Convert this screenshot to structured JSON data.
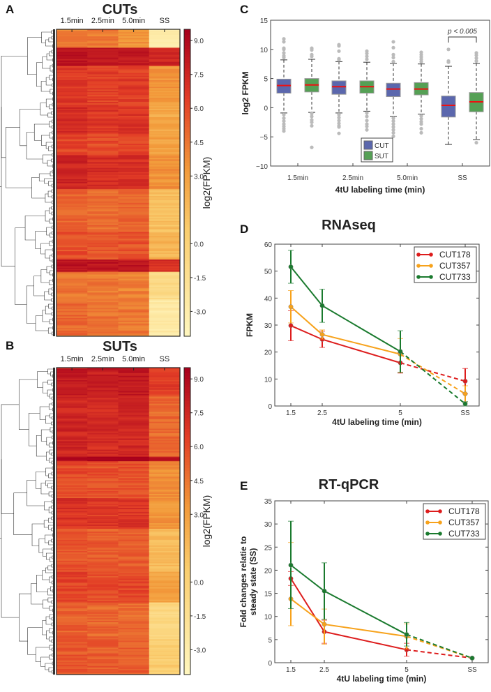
{
  "panels": {
    "A": {
      "letter": "A",
      "title": "CUTs"
    },
    "B": {
      "letter": "B",
      "title": "SUTs"
    },
    "C": {
      "letter": "C"
    },
    "D": {
      "letter": "D",
      "title": "RNAseq"
    },
    "E": {
      "letter": "E",
      "title": "RT-qPCR"
    }
  },
  "colors": {
    "cut_box": "#5b67ad",
    "sut_box": "#55a055",
    "median": "#ee1111",
    "outlier": "#bbbbbb",
    "CUT178": "#dd1c1c",
    "CUT357": "#f7a21b",
    "CUT733": "#1a7a2e",
    "heat_low": "#fff7c0",
    "heat_mid": "#f29a3a",
    "heat_high": "#a8001c"
  },
  "chart_data": [
    {
      "id": "A",
      "type": "heatmap",
      "title": "CUTs",
      "columns": [
        "1.5min",
        "2.5min",
        "5.0min",
        "SS"
      ],
      "colorbar_label": "log2(FPKM)",
      "colorbar_ticks": [
        "9.0",
        "7.5",
        "6.0",
        "4.5",
        "3.0",
        "0.0",
        "-1.5",
        "-3.0"
      ],
      "colorbar_range": [
        -4.1,
        9.5
      ],
      "row_blocks": [
        {
          "share": 6,
          "values": [
            4.2,
            4.4,
            3.6,
            -2.8
          ]
        },
        {
          "share": 6,
          "values": [
            8.4,
            8.2,
            8.3,
            7.6
          ]
        },
        {
          "share": 13,
          "values": [
            6.7,
            6.4,
            6.5,
            3.4
          ]
        },
        {
          "share": 9,
          "values": [
            7.2,
            6.8,
            6.9,
            2.6
          ]
        },
        {
          "share": 7,
          "values": [
            6.2,
            6.1,
            6.2,
            3.0
          ]
        },
        {
          "share": 11,
          "values": [
            7.6,
            7.3,
            7.2,
            3.6
          ]
        },
        {
          "share": 14,
          "values": [
            5.2,
            4.9,
            5.0,
            1.4
          ]
        },
        {
          "share": 9,
          "values": [
            5.9,
            5.6,
            5.7,
            2.0
          ]
        },
        {
          "share": 4,
          "values": [
            8.6,
            8.4,
            8.3,
            7.2
          ]
        },
        {
          "share": 9,
          "values": [
            4.6,
            4.4,
            4.2,
            -0.8
          ]
        },
        {
          "share": 12,
          "values": [
            5.0,
            4.7,
            4.6,
            -2.5
          ]
        }
      ]
    },
    {
      "id": "B",
      "type": "heatmap",
      "title": "SUTs",
      "columns": [
        "1.5min",
        "2.5min",
        "5.0min",
        "SS"
      ],
      "colorbar_label": "log2(FPKM)",
      "colorbar_ticks": [
        "9.0",
        "7.5",
        "6.0",
        "4.5",
        "3.0",
        "0.0",
        "-1.5",
        "-3.0"
      ],
      "colorbar_range": [
        -4.1,
        9.5
      ],
      "row_blocks": [
        {
          "share": 9,
          "values": [
            8.2,
            8.0,
            8.1,
            6.6
          ]
        },
        {
          "share": 20,
          "values": [
            7.6,
            7.3,
            7.5,
            5.0
          ]
        },
        {
          "share": 1.5,
          "values": [
            9.3,
            9.2,
            9.2,
            8.8
          ]
        },
        {
          "share": 12,
          "values": [
            6.0,
            5.8,
            5.9,
            3.8
          ]
        },
        {
          "share": 10,
          "values": [
            7.0,
            6.7,
            6.8,
            3.5
          ]
        },
        {
          "share": 14,
          "values": [
            5.6,
            5.4,
            5.4,
            1.5
          ]
        },
        {
          "share": 10,
          "values": [
            6.3,
            6.0,
            6.1,
            3.0
          ]
        },
        {
          "share": 12,
          "values": [
            5.3,
            5.1,
            5.0,
            -0.5
          ]
        },
        {
          "share": 11.5,
          "values": [
            5.6,
            5.4,
            5.3,
            0.5
          ]
        }
      ]
    },
    {
      "id": "C",
      "type": "box",
      "ylabel": "log2 FPKM",
      "xlabel": "4tU labeling time (min)",
      "categories": [
        "1.5min",
        "2.5min",
        "5.0min",
        "SS"
      ],
      "ylim": [
        -10,
        15
      ],
      "yticks": [
        "15",
        "10",
        "5",
        "0",
        "−5",
        "−10"
      ],
      "ytick_values": [
        15,
        10,
        5,
        0,
        -5,
        -10
      ],
      "legend": [
        "CUT",
        "SUT"
      ],
      "annotation": "p < 0.005",
      "series": [
        {
          "name": "CUT",
          "boxes": [
            {
              "q1": 2.5,
              "median": 3.8,
              "q3": 4.9,
              "low": -0.9,
              "high": 8.2,
              "outliers": [
                8.6,
                8.9,
                9.4,
                10.0,
                10.2,
                11.3,
                11.8,
                -1.2,
                -1.8,
                -2.3,
                -2.8,
                -3.2,
                -3.6,
                -4.0
              ]
            },
            {
              "q1": 2.3,
              "median": 3.6,
              "q3": 4.6,
              "low": -0.9,
              "high": 7.9,
              "outliers": [
                8.2,
                8.4,
                9.7,
                10.6,
                10.8,
                -1.2,
                -1.7,
                -2.2,
                -2.7,
                -3.1,
                -3.3,
                -4.4
              ]
            },
            {
              "q1": 1.9,
              "median": 3.2,
              "q3": 4.2,
              "low": -1.5,
              "high": 7.6,
              "outliers": [
                7.9,
                8.6,
                9.1,
                10.3,
                11.3,
                -1.8,
                -2.3,
                -2.8,
                -3.3,
                -3.8,
                -4.3,
                -4.9
              ]
            },
            {
              "q1": -1.6,
              "median": 0.4,
              "q3": 2.0,
              "low": -6.3,
              "high": 7.1,
              "outliers": [
                7.8,
                8.0,
                10.0
              ]
            }
          ]
        },
        {
          "name": "SUT",
          "boxes": [
            {
              "q1": 2.7,
              "median": 3.9,
              "q3": 5.0,
              "low": -0.8,
              "high": 8.3,
              "outliers": [
                8.8,
                9.1,
                9.9,
                10.2,
                -1.0,
                -1.5,
                -2.1,
                -2.5,
                -3.1,
                -6.8
              ]
            },
            {
              "q1": 2.5,
              "median": 3.6,
              "q3": 4.6,
              "low": -0.6,
              "high": 7.8,
              "outliers": [
                8.3,
                8.8,
                9.3,
                9.7,
                -0.9,
                -1.5,
                -2.2,
                -2.8,
                -3.2,
                -3.8
              ]
            },
            {
              "q1": 2.2,
              "median": 3.2,
              "q3": 4.3,
              "low": -1.1,
              "high": 7.5,
              "outliers": [
                7.9,
                8.3,
                8.7,
                9.1,
                9.5,
                -1.4,
                -1.9,
                -2.4,
                -2.8,
                -3.6,
                -4.3
              ]
            },
            {
              "q1": -0.7,
              "median": 1.0,
              "q3": 2.6,
              "low": -5.5,
              "high": 7.6,
              "outliers": [
                8.0,
                8.5,
                9.0,
                9.4,
                -6.0
              ]
            }
          ]
        }
      ]
    },
    {
      "id": "D",
      "type": "line",
      "title": "RNAseq",
      "ylabel": "FPKM",
      "xlabel": "4tU labeling time (min)",
      "x": [
        1.5,
        2.5,
        5,
        "SS"
      ],
      "xticks": [
        "1.5",
        "2.5",
        "5",
        "SS"
      ],
      "ylim": [
        0,
        60
      ],
      "yticks": [
        "60",
        "50",
        "40",
        "30",
        "20",
        "10",
        "0"
      ],
      "ytick_values": [
        60,
        50,
        40,
        30,
        20,
        10,
        0
      ],
      "legend_position": "top-right",
      "series": [
        {
          "name": "CUT178",
          "values": [
            29.8,
            24.7,
            16.0,
            9.2
          ],
          "err_low": [
            24.2,
            21.7,
            12.2,
            4.5
          ],
          "err_high": [
            35.3,
            27.7,
            19.8,
            13.9
          ]
        },
        {
          "name": "CUT357",
          "values": [
            36.8,
            26.5,
            19.2,
            4.5
          ],
          "err_low": [
            30.8,
            24.8,
            12.5,
            1.5
          ],
          "err_high": [
            42.8,
            28.2,
            25.0,
            7.5
          ]
        },
        {
          "name": "CUT733",
          "values": [
            51.6,
            37.2,
            20.2,
            0.8
          ],
          "err_low": [
            45.5,
            31.0,
            12.5,
            0.0
          ],
          "err_high": [
            57.7,
            43.3,
            27.9,
            1.6
          ]
        }
      ]
    },
    {
      "id": "E",
      "type": "line",
      "title": "RT-qPCR",
      "ylabel": [
        "Fold changes relatie to",
        "steady state (SS)"
      ],
      "xlabel": "4tU labeling time (min)",
      "x": [
        1.5,
        2.5,
        5,
        "SS"
      ],
      "xticks": [
        "1.5",
        "2.5",
        "5",
        "SS"
      ],
      "ylim": [
        0,
        35
      ],
      "yticks": [
        "35",
        "30",
        "25",
        "20",
        "15",
        "10",
        "5",
        "0"
      ],
      "ytick_values": [
        35,
        30,
        25,
        20,
        15,
        10,
        5,
        0
      ],
      "legend_position": "top-right",
      "series": [
        {
          "name": "CUT178",
          "values": [
            18.2,
            6.7,
            2.8,
            1.0
          ],
          "err_low": [
            16.7,
            4.2,
            1.4,
            1.0
          ],
          "err_high": [
            19.7,
            9.2,
            4.2,
            1.0
          ]
        },
        {
          "name": "CUT357",
          "values": [
            13.8,
            8.3,
            5.7,
            1.0
          ],
          "err_low": [
            8.0,
            4.0,
            3.0,
            1.0
          ],
          "err_high": [
            26.0,
            11.6,
            8.4,
            1.0
          ]
        },
        {
          "name": "CUT733",
          "values": [
            21.1,
            15.5,
            6.1,
            1.0
          ],
          "err_low": [
            11.7,
            9.4,
            3.6,
            1.0
          ],
          "err_high": [
            30.6,
            21.6,
            8.7,
            1.0
          ]
        }
      ]
    }
  ]
}
